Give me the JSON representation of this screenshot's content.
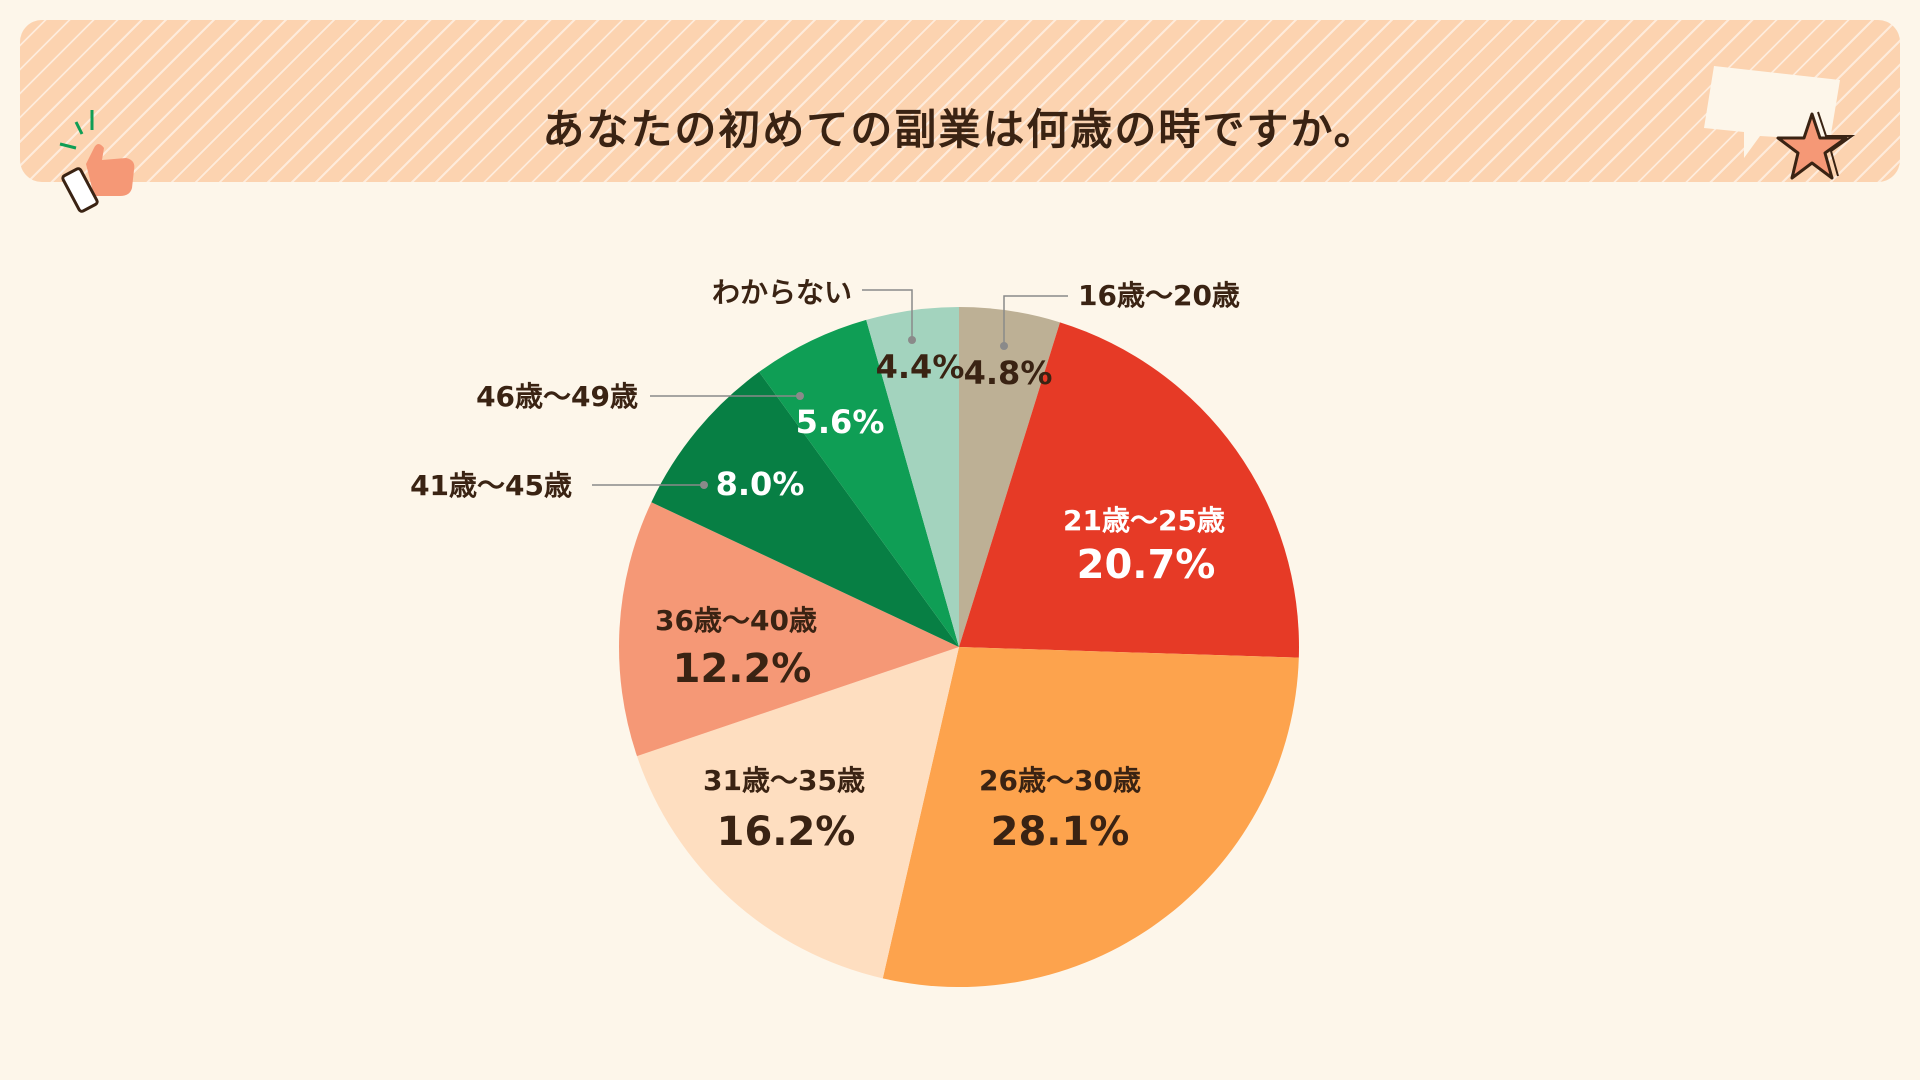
{
  "title": "あなたの初めての副業は何歳の時ですか。",
  "chart_data": {
    "type": "pie",
    "title": "あなたの初めての副業は何歳の時ですか。",
    "categories": [
      "16歳〜20歳",
      "21歳〜25歳",
      "26歳〜30歳",
      "31歳〜35歳",
      "36歳〜40歳",
      "41歳〜45歳",
      "46歳〜49歳",
      "わからない"
    ],
    "values": [
      4.8,
      20.7,
      28.1,
      16.2,
      12.2,
      8.0,
      5.6,
      4.4
    ],
    "value_labels": [
      "4.8%",
      "20.7%",
      "28.1%",
      "16.2%",
      "12.2%",
      "8.0%",
      "5.6%",
      "4.4%"
    ],
    "colors": [
      "#bdb095",
      "#e63a26",
      "#fda34d",
      "#fedec0",
      "#f59876",
      "#077f44",
      "#0f9e55",
      "#a3d3be"
    ],
    "start_angle_deg": 0,
    "direction": "clockwise"
  }
}
